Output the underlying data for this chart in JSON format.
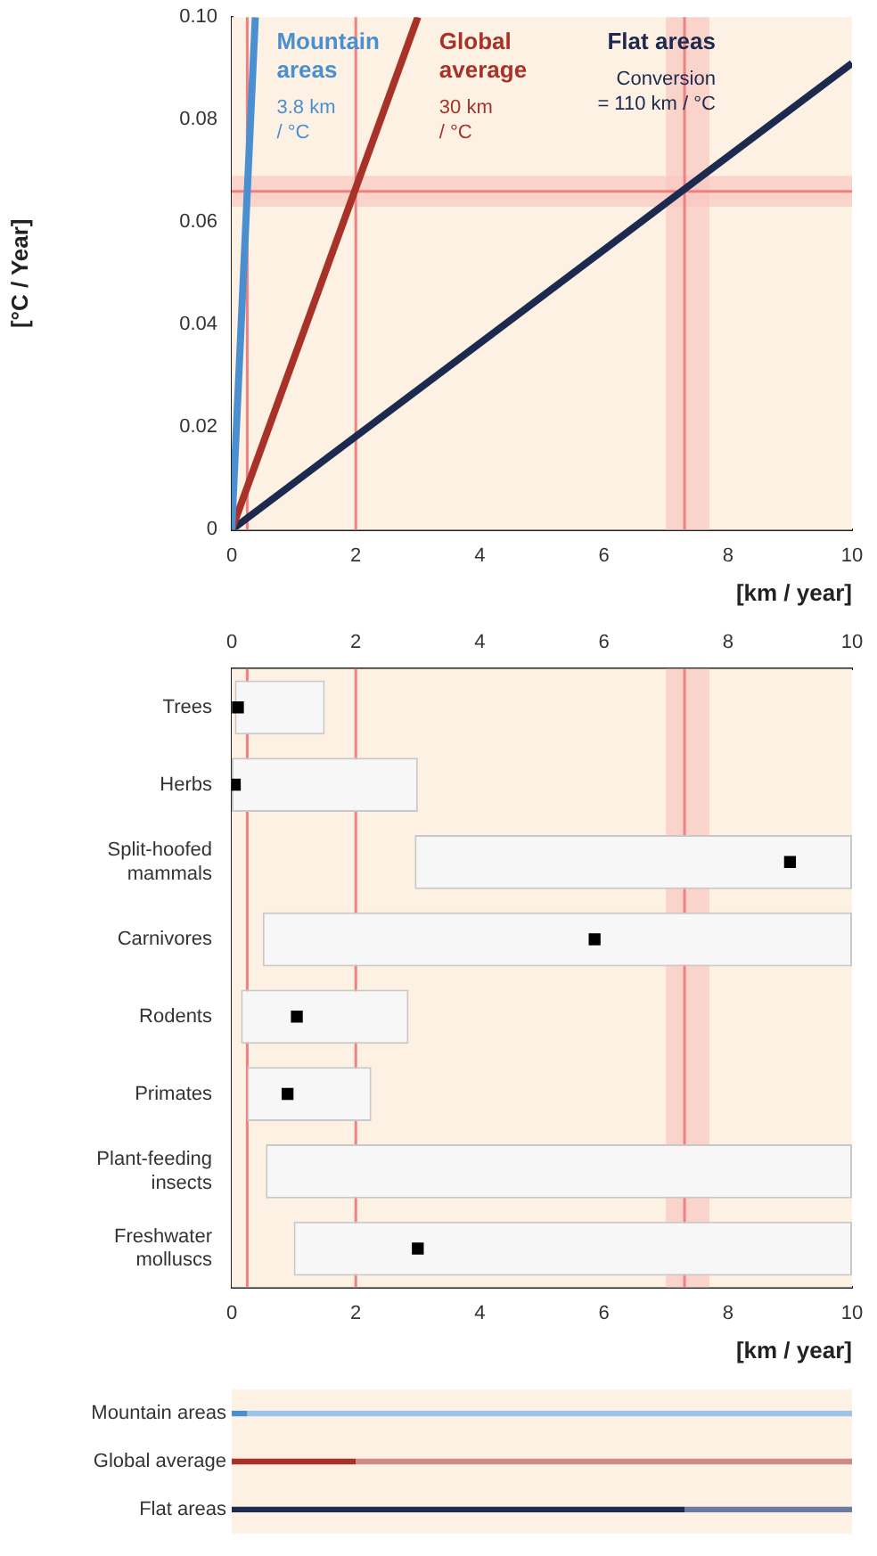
{
  "chart_data": [
    {
      "type": "line",
      "xlabel": "[km / year]",
      "ylabel": "[°C / Year]",
      "xlim": [
        0,
        10
      ],
      "xticks": [
        0,
        2,
        4,
        6,
        8,
        10
      ],
      "ylim": [
        0,
        0.1
      ],
      "yticks": [
        0,
        0.02,
        0.04,
        0.06,
        0.08,
        {
          "value": 0.1,
          "label": "0.10"
        }
      ],
      "grid": false,
      "legend": false,
      "series": [
        {
          "name": "Mountain areas",
          "color": "#4a90d0",
          "x": [
            0,
            0.38
          ],
          "values": [
            0,
            0.1
          ]
        },
        {
          "name": "Global average",
          "color": "#a83228",
          "x": [
            0,
            3
          ],
          "values": [
            0,
            0.1
          ]
        },
        {
          "name": "Flat areas",
          "color": "#1c2a50",
          "x": [
            0,
            10
          ],
          "values": [
            0,
            0.091
          ]
        }
      ],
      "annotations": [
        "3.8 km / °C",
        "30 km / °C",
        "Conversion = 110 km / °C"
      ],
      "ref_lines": [
        {
          "axis": "y",
          "value": 0.066,
          "color": "#f08080"
        },
        {
          "axis": "x",
          "value": 0.25,
          "color": "#f08080"
        },
        {
          "axis": "x",
          "value": 2,
          "color": "#f08080"
        },
        {
          "axis": "x",
          "value": 7.3,
          "color": "#f08080"
        }
      ],
      "bands": [
        {
          "axis": "y",
          "from": 0.063,
          "to": 0.069,
          "color": "#f8c8c0"
        },
        {
          "axis": "x",
          "from": 7.0,
          "to": 7.7,
          "color": "#f8c8c0"
        }
      ]
    },
    {
      "type": "bar",
      "orientation": "horizontal",
      "xlabel": "[km / year]",
      "xlim": [
        0,
        10
      ],
      "xticks": [
        0,
        2,
        4,
        6,
        8,
        10
      ],
      "x2lim": [
        0,
        10
      ],
      "x2ticks": [
        0,
        2,
        4,
        6,
        8,
        10
      ],
      "grid": false,
      "legend": false,
      "categories": [
        "Trees",
        "Herbs",
        "Split-hoofed mammals",
        "Carnivores",
        "Rodents",
        "Primates",
        "Plant-feeding insects",
        "Freshwater molluscs"
      ],
      "series": [
        {
          "color": "#f7f7f7",
          "base": [
            0.05,
            0,
            2.95,
            0.5,
            0.15,
            0.25,
            0.55,
            1.0
          ],
          "values": [
            1.45,
            3.0,
            7.05,
            9.5,
            2.7,
            2.0,
            9.45,
            9.0
          ]
        },
        {
          "type": "scatter",
          "color": "#000000",
          "marker": "square",
          "x": [
            "Trees",
            "Herbs",
            "Split-hoofed mammals",
            "Carnivores",
            "Rodents",
            "Primates",
            "Plant-feeding insects",
            "Freshwater molluscs"
          ],
          "values": [
            0.1,
            0.05,
            9.0,
            5.85,
            1.05,
            0.9,
            null,
            3.0
          ]
        }
      ],
      "ref_lines": [
        {
          "axis": "x",
          "value": 0.25,
          "color": "#f08080"
        },
        {
          "axis": "x",
          "value": 2,
          "color": "#f08080"
        },
        {
          "axis": "x",
          "value": 7.3,
          "color": "#f08080"
        }
      ],
      "bands": [
        {
          "axis": "x",
          "from": 7.0,
          "to": 7.7,
          "color": "#f8c8c0"
        }
      ]
    },
    {
      "type": "bar",
      "orientation": "horizontal",
      "stacked": true,
      "xlim": [
        0,
        10
      ],
      "tick_labels": "y",
      "grid": false,
      "legend": false,
      "categories": [
        "Mountain areas",
        "Global average",
        "Flat areas"
      ],
      "series": [
        {
          "colors": [
            "#4a90d0",
            "#a83228",
            "#1c2a50"
          ],
          "values": [
            0.25,
            2,
            7.3
          ]
        },
        {
          "colors": [
            "#9cc4ea",
            "#d08a84",
            "#6a7aa0"
          ],
          "values": [
            9.75,
            8,
            2.7
          ]
        }
      ]
    }
  ]
}
